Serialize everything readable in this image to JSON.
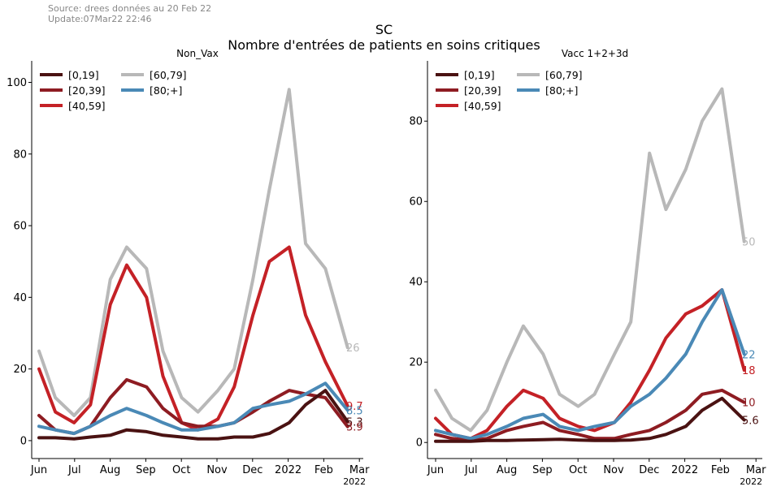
{
  "header": {
    "source": "Source: drees données au 20 Feb 22",
    "update": "Update:07Mar22 22:46",
    "title": "SC",
    "subtitle": "Nombre d'entrées de patients en soins critiques"
  },
  "colors": {
    "[0,19]": "#4a1212",
    "[20,39]": "#8e1c22",
    "[40,59]": "#c42126",
    "[60,79]": "#b8b8b8",
    "[80;+]": "#4a89b6"
  },
  "chart_data": [
    {
      "type": "line",
      "title": "Non_Vax",
      "x_ticks": [
        "Jun",
        "Jul",
        "Aug",
        "Sep",
        "Oct",
        "Nov",
        "Dec",
        "2022",
        "Feb",
        "Mar"
      ],
      "x_year_label": "2022",
      "ylim": [
        -5,
        106
      ],
      "y_ticks": [
        0,
        20,
        40,
        60,
        80,
        100
      ],
      "legend": "top-left",
      "x_dates": [
        "2021-06-01",
        "2021-06-15",
        "2021-07-01",
        "2021-07-15",
        "2021-08-01",
        "2021-08-15",
        "2021-09-01",
        "2021-09-15",
        "2021-10-01",
        "2021-10-15",
        "2021-11-01",
        "2021-11-15",
        "2021-12-01",
        "2021-12-15",
        "2022-01-01",
        "2022-01-15",
        "2022-02-01",
        "2022-02-20"
      ],
      "series": [
        {
          "name": "[0,19]",
          "values": [
            0.8,
            0.8,
            0.5,
            1,
            1.5,
            3,
            2.5,
            1.5,
            1,
            0.5,
            0.5,
            1,
            1,
            2,
            5,
            10,
            14,
            5.3
          ],
          "end_label": "5.3"
        },
        {
          "name": "[20,39]",
          "values": [
            7,
            3,
            2,
            4,
            12,
            17,
            15,
            9,
            5,
            4,
            4,
            5,
            8,
            11,
            14,
            13,
            12,
            3.9
          ],
          "end_label": "3.9"
        },
        {
          "name": "[40,59]",
          "values": [
            20,
            8,
            5,
            10,
            38,
            49,
            40,
            18,
            5,
            3,
            6,
            15,
            35,
            50,
            54,
            35,
            22,
            9.7
          ],
          "end_label": "9.7"
        },
        {
          "name": "[60,79]",
          "values": [
            25,
            12,
            7,
            12,
            45,
            54,
            48,
            25,
            12,
            8,
            14,
            20,
            45,
            70,
            98,
            55,
            48,
            26
          ],
          "end_label": "26"
        },
        {
          "name": "[80;+]",
          "values": [
            4,
            3,
            2,
            4,
            7,
            9,
            7,
            5,
            3,
            3,
            4,
            5,
            9,
            10,
            11,
            13,
            16,
            8.5
          ],
          "end_label": "8.5"
        }
      ]
    },
    {
      "type": "line",
      "title": "Vacc 1+2+3d",
      "x_ticks": [
        "Jun",
        "Jul",
        "Aug",
        "Sep",
        "Oct",
        "Nov",
        "Dec",
        "2022",
        "Feb",
        "Mar"
      ],
      "x_year_label": "2022",
      "ylim": [
        -4,
        95
      ],
      "y_ticks": [
        0,
        20,
        40,
        60,
        80
      ],
      "legend": "top-left",
      "x_dates": [
        "2021-06-01",
        "2021-06-15",
        "2021-07-01",
        "2021-07-15",
        "2021-08-01",
        "2021-08-15",
        "2021-09-01",
        "2021-09-15",
        "2021-10-01",
        "2021-10-15",
        "2021-11-01",
        "2021-11-15",
        "2021-12-01",
        "2021-12-15",
        "2022-01-01",
        "2022-01-15",
        "2022-02-01",
        "2022-02-20"
      ],
      "series": [
        {
          "name": "[0,19]",
          "values": [
            0.3,
            0.3,
            0.3,
            0.5,
            0.5,
            0.6,
            0.7,
            0.8,
            0.6,
            0.5,
            0.5,
            0.6,
            1,
            2,
            4,
            8,
            11,
            5.6
          ],
          "end_label": "5.6"
        },
        {
          "name": "[20,39]",
          "values": [
            2,
            1,
            0.5,
            1,
            3,
            4,
            5,
            3,
            2,
            1,
            1,
            2,
            3,
            5,
            8,
            12,
            13,
            10
          ],
          "end_label": "10"
        },
        {
          "name": "[40,59]",
          "values": [
            6,
            2,
            1,
            3,
            9,
            13,
            11,
            6,
            4,
            3,
            5,
            10,
            18,
            26,
            32,
            34,
            38,
            18
          ],
          "end_label": "18"
        },
        {
          "name": "[60,79]",
          "values": [
            13,
            6,
            3,
            8,
            20,
            29,
            22,
            12,
            9,
            12,
            22,
            30,
            72,
            58,
            68,
            80,
            88,
            50
          ],
          "end_label": "50"
        },
        {
          "name": "[80;+]",
          "values": [
            3,
            2,
            1,
            2,
            4,
            6,
            7,
            4,
            3,
            4,
            5,
            9,
            12,
            16,
            22,
            30,
            38,
            22
          ],
          "end_label": "22"
        }
      ]
    }
  ]
}
